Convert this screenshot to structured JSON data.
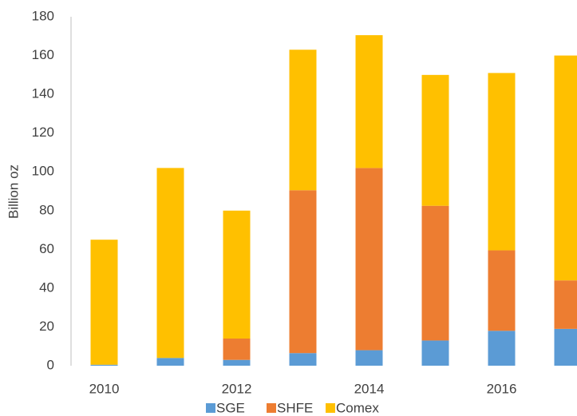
{
  "chart_data": {
    "type": "bar",
    "stacked": true,
    "y_label": "Billion oz",
    "categories": [
      "2010",
      null,
      "2012",
      null,
      "2014",
      null,
      "2016",
      null
    ],
    "series": [
      {
        "name": "SGE",
        "color": "#5b9bd5",
        "values": [
          0.5,
          4,
          3,
          6.5,
          8,
          13,
          18,
          19
        ]
      },
      {
        "name": "SHFE",
        "color": "#ed7d31",
        "values": [
          0,
          0,
          11,
          84,
          94,
          69.5,
          41.5,
          25
        ]
      },
      {
        "name": "Comex",
        "color": "#ffc000",
        "values": [
          64.5,
          98,
          66,
          72.5,
          68.5,
          67.5,
          91.5,
          116
        ]
      }
    ],
    "ylim": [
      0,
      180
    ],
    "yticks": [
      0,
      20,
      40,
      60,
      80,
      100,
      120,
      140,
      160,
      180
    ],
    "grid": false,
    "legend": "bottom"
  }
}
